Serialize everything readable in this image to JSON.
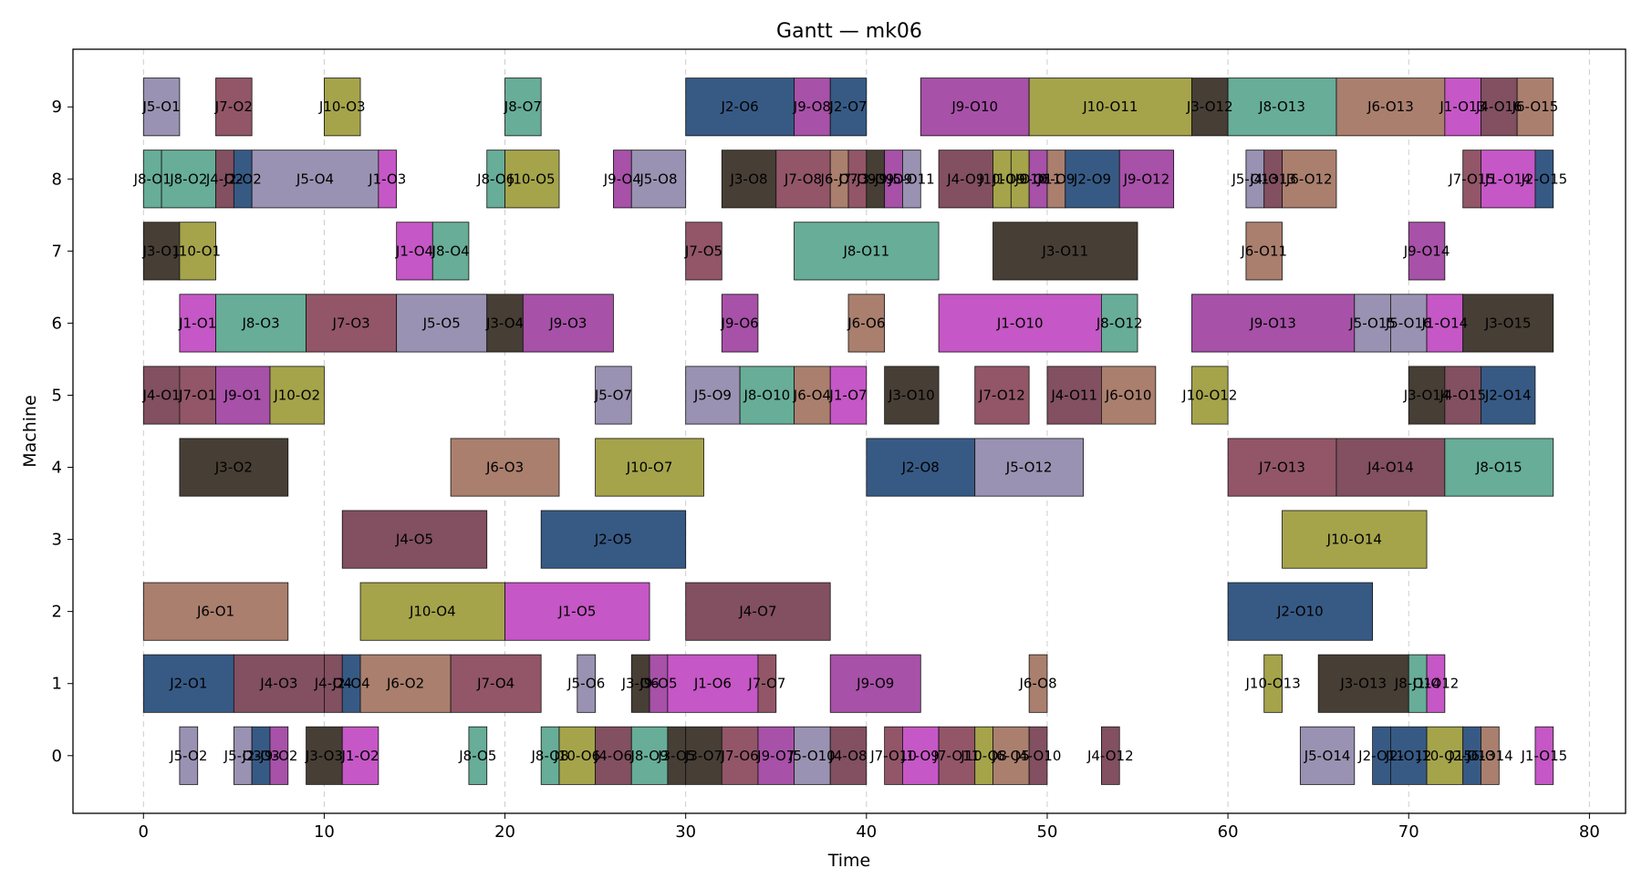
{
  "chart_data": {
    "type": "gantt",
    "title": "Gantt — mk06",
    "xlabel": "Time",
    "ylabel": "Machine",
    "xlim": [
      -3.9,
      82
    ],
    "ylim": [
      -0.8,
      9.8
    ],
    "xticks": [
      0,
      10,
      20,
      30,
      40,
      50,
      60,
      70,
      80
    ],
    "yticks": [
      0,
      1,
      2,
      3,
      4,
      5,
      6,
      7,
      8,
      9
    ],
    "grid": "vertical-dashed",
    "job_colors": {
      "J1": "#c657c6",
      "J2": "#375a85",
      "J3": "#473e35",
      "J4": "#825060",
      "J5": "#9a92b2",
      "J6": "#aa7f6e",
      "J7": "#925668",
      "J8": "#67ad98",
      "J9": "#a751a8",
      "J10": "#a5a44b"
    },
    "tasks": [
      {
        "m": 9,
        "s": 0,
        "e": 2,
        "label": "J5-O1"
      },
      {
        "m": 9,
        "s": 4,
        "e": 6,
        "label": "J7-O2"
      },
      {
        "m": 9,
        "s": 10,
        "e": 12,
        "label": "J10-O3"
      },
      {
        "m": 9,
        "s": 20,
        "e": 22,
        "label": "J8-O7"
      },
      {
        "m": 9,
        "s": 30,
        "e": 36,
        "label": "J2-O6"
      },
      {
        "m": 9,
        "s": 36,
        "e": 38,
        "label": "J9-O8"
      },
      {
        "m": 9,
        "s": 38,
        "e": 40,
        "label": "J2-O7"
      },
      {
        "m": 9,
        "s": 43,
        "e": 49,
        "label": "J9-O10"
      },
      {
        "m": 9,
        "s": 49,
        "e": 58,
        "label": "J10-O11"
      },
      {
        "m": 9,
        "s": 58,
        "e": 60,
        "label": "J3-O12"
      },
      {
        "m": 9,
        "s": 60,
        "e": 66,
        "label": "J8-O13"
      },
      {
        "m": 9,
        "s": 66,
        "e": 72,
        "label": "J6-O13"
      },
      {
        "m": 9,
        "s": 72,
        "e": 74,
        "label": "J1-O13"
      },
      {
        "m": 9,
        "s": 74,
        "e": 76,
        "label": "J4-O16"
      },
      {
        "m": 9,
        "s": 76,
        "e": 78,
        "label": "J6-O15"
      },
      {
        "m": 8,
        "s": 0,
        "e": 1,
        "label": "J8-O1"
      },
      {
        "m": 8,
        "s": 1,
        "e": 4,
        "label": "J8-O2"
      },
      {
        "m": 8,
        "s": 4,
        "e": 5,
        "label": "J4-O2"
      },
      {
        "m": 8,
        "s": 5,
        "e": 6,
        "label": "J2-O2"
      },
      {
        "m": 8,
        "s": 6,
        "e": 13,
        "label": "J5-O4"
      },
      {
        "m": 8,
        "s": 13,
        "e": 14,
        "label": "J1-O3"
      },
      {
        "m": 8,
        "s": 19,
        "e": 20,
        "label": "J8-O6"
      },
      {
        "m": 8,
        "s": 20,
        "e": 23,
        "label": "J10-O5"
      },
      {
        "m": 8,
        "s": 26,
        "e": 27,
        "label": "J9-O4"
      },
      {
        "m": 8,
        "s": 27,
        "e": 30,
        "label": "J5-O8"
      },
      {
        "m": 8,
        "s": 32,
        "e": 35,
        "label": "J3-O8"
      },
      {
        "m": 8,
        "s": 35,
        "e": 38,
        "label": "J7-O8"
      },
      {
        "m": 8,
        "s": 38,
        "e": 39,
        "label": "J6-O7"
      },
      {
        "m": 8,
        "s": 39,
        "e": 40,
        "label": "J7-O9"
      },
      {
        "m": 8,
        "s": 40,
        "e": 41,
        "label": "J3-O9"
      },
      {
        "m": 8,
        "s": 41,
        "e": 42,
        "label": "J9-O9"
      },
      {
        "m": 8,
        "s": 42,
        "e": 43,
        "label": "J5-O11"
      },
      {
        "m": 8,
        "s": 44,
        "e": 47,
        "label": "J4-O9"
      },
      {
        "m": 8,
        "s": 47,
        "e": 48,
        "label": "J10-O9"
      },
      {
        "m": 8,
        "s": 48,
        "e": 49,
        "label": "J10-O10"
      },
      {
        "m": 8,
        "s": 49,
        "e": 50,
        "label": "J9-O11"
      },
      {
        "m": 8,
        "s": 50,
        "e": 51,
        "label": "J6-O9"
      },
      {
        "m": 8,
        "s": 51,
        "e": 54,
        "label": "J2-O9"
      },
      {
        "m": 8,
        "s": 54,
        "e": 57,
        "label": "J9-O12"
      },
      {
        "m": 8,
        "s": 61,
        "e": 62,
        "label": "J5-O13"
      },
      {
        "m": 8,
        "s": 62,
        "e": 63,
        "label": "J4-O13"
      },
      {
        "m": 8,
        "s": 63,
        "e": 66,
        "label": "J6-O12"
      },
      {
        "m": 8,
        "s": 73,
        "e": 74,
        "label": "J7-O15"
      },
      {
        "m": 8,
        "s": 74,
        "e": 77,
        "label": "J1-O14"
      },
      {
        "m": 8,
        "s": 77,
        "e": 78,
        "label": "J2-O15"
      },
      {
        "m": 7,
        "s": 0,
        "e": 2,
        "label": "J3-O1"
      },
      {
        "m": 7,
        "s": 2,
        "e": 4,
        "label": "J10-O1"
      },
      {
        "m": 7,
        "s": 14,
        "e": 16,
        "label": "J1-O4"
      },
      {
        "m": 7,
        "s": 16,
        "e": 18,
        "label": "J8-O4"
      },
      {
        "m": 7,
        "s": 30,
        "e": 32,
        "label": "J7-O5"
      },
      {
        "m": 7,
        "s": 36,
        "e": 44,
        "label": "J8-O11"
      },
      {
        "m": 7,
        "s": 47,
        "e": 55,
        "label": "J3-O11"
      },
      {
        "m": 7,
        "s": 61,
        "e": 63,
        "label": "J6-O11"
      },
      {
        "m": 7,
        "s": 70,
        "e": 72,
        "label": "J9-O14"
      },
      {
        "m": 6,
        "s": 2,
        "e": 4,
        "label": "J1-O1"
      },
      {
        "m": 6,
        "s": 4,
        "e": 9,
        "label": "J8-O3"
      },
      {
        "m": 6,
        "s": 9,
        "e": 14,
        "label": "J7-O3"
      },
      {
        "m": 6,
        "s": 14,
        "e": 19,
        "label": "J5-O5"
      },
      {
        "m": 6,
        "s": 19,
        "e": 21,
        "label": "J3-O4"
      },
      {
        "m": 6,
        "s": 21,
        "e": 26,
        "label": "J9-O3"
      },
      {
        "m": 6,
        "s": 32,
        "e": 34,
        "label": "J9-O6"
      },
      {
        "m": 6,
        "s": 39,
        "e": 41,
        "label": "J6-O6"
      },
      {
        "m": 6,
        "s": 44,
        "e": 53,
        "label": "J1-O10"
      },
      {
        "m": 6,
        "s": 53,
        "e": 55,
        "label": "J8-O12"
      },
      {
        "m": 6,
        "s": 58,
        "e": 67,
        "label": "J9-O13"
      },
      {
        "m": 6,
        "s": 67,
        "e": 69,
        "label": "J5-O15"
      },
      {
        "m": 6,
        "s": 69,
        "e": 71,
        "label": "J5-O16"
      },
      {
        "m": 6,
        "s": 71,
        "e": 73,
        "label": "J1-O14"
      },
      {
        "m": 6,
        "s": 73,
        "e": 78,
        "label": "J3-O15"
      },
      {
        "m": 5,
        "s": 0,
        "e": 2,
        "label": "J4-O1"
      },
      {
        "m": 5,
        "s": 2,
        "e": 4,
        "label": "J7-O1"
      },
      {
        "m": 5,
        "s": 4,
        "e": 7,
        "label": "J9-O1"
      },
      {
        "m": 5,
        "s": 7,
        "e": 10,
        "label": "J10-O2"
      },
      {
        "m": 5,
        "s": 25,
        "e": 27,
        "label": "J5-O7"
      },
      {
        "m": 5,
        "s": 30,
        "e": 33,
        "label": "J5-O9"
      },
      {
        "m": 5,
        "s": 33,
        "e": 36,
        "label": "J8-O10"
      },
      {
        "m": 5,
        "s": 36,
        "e": 38,
        "label": "J6-O4"
      },
      {
        "m": 5,
        "s": 38,
        "e": 40,
        "label": "J1-O7"
      },
      {
        "m": 5,
        "s": 41,
        "e": 44,
        "label": "J3-O10"
      },
      {
        "m": 5,
        "s": 46,
        "e": 49,
        "label": "J7-O12"
      },
      {
        "m": 5,
        "s": 50,
        "e": 53,
        "label": "J4-O11"
      },
      {
        "m": 5,
        "s": 53,
        "e": 56,
        "label": "J6-O10"
      },
      {
        "m": 5,
        "s": 58,
        "e": 60,
        "label": "J10-O12"
      },
      {
        "m": 5,
        "s": 70,
        "e": 72,
        "label": "J3-O14"
      },
      {
        "m": 5,
        "s": 72,
        "e": 74,
        "label": "J4-O15"
      },
      {
        "m": 5,
        "s": 74,
        "e": 77,
        "label": "J2-O14"
      },
      {
        "m": 4,
        "s": 2,
        "e": 8,
        "label": "J3-O2"
      },
      {
        "m": 4,
        "s": 17,
        "e": 23,
        "label": "J6-O3"
      },
      {
        "m": 4,
        "s": 25,
        "e": 31,
        "label": "J10-O7"
      },
      {
        "m": 4,
        "s": 40,
        "e": 46,
        "label": "J2-O8"
      },
      {
        "m": 4,
        "s": 46,
        "e": 52,
        "label": "J5-O12"
      },
      {
        "m": 4,
        "s": 60,
        "e": 66,
        "label": "J7-O13"
      },
      {
        "m": 4,
        "s": 66,
        "e": 72,
        "label": "J4-O14"
      },
      {
        "m": 4,
        "s": 72,
        "e": 78,
        "label": "J8-O15"
      },
      {
        "m": 3,
        "s": 11,
        "e": 19,
        "label": "J4-O5"
      },
      {
        "m": 3,
        "s": 22,
        "e": 30,
        "label": "J2-O5"
      },
      {
        "m": 3,
        "s": 63,
        "e": 71,
        "label": "J10-O14"
      },
      {
        "m": 2,
        "s": 0,
        "e": 8,
        "label": "J6-O1"
      },
      {
        "m": 2,
        "s": 12,
        "e": 20,
        "label": "J10-O4"
      },
      {
        "m": 2,
        "s": 20,
        "e": 28,
        "label": "J1-O5"
      },
      {
        "m": 2,
        "s": 30,
        "e": 38,
        "label": "J4-O7"
      },
      {
        "m": 2,
        "s": 60,
        "e": 68,
        "label": "J2-O10"
      },
      {
        "m": 1,
        "s": 0,
        "e": 5,
        "label": "J2-O1"
      },
      {
        "m": 1,
        "s": 5,
        "e": 10,
        "label": "J4-O3"
      },
      {
        "m": 1,
        "s": 10,
        "e": 11,
        "label": "J4-O4"
      },
      {
        "m": 1,
        "s": 11,
        "e": 12,
        "label": "J2-O4"
      },
      {
        "m": 1,
        "s": 12,
        "e": 17,
        "label": "J6-O2"
      },
      {
        "m": 1,
        "s": 17,
        "e": 22,
        "label": "J7-O4"
      },
      {
        "m": 1,
        "s": 24,
        "e": 25,
        "label": "J5-O6"
      },
      {
        "m": 1,
        "s": 27,
        "e": 28,
        "label": "J3-O6"
      },
      {
        "m": 1,
        "s": 28,
        "e": 29,
        "label": "J9-O5"
      },
      {
        "m": 1,
        "s": 29,
        "e": 34,
        "label": "J1-O6"
      },
      {
        "m": 1,
        "s": 34,
        "e": 35,
        "label": "J7-O7"
      },
      {
        "m": 1,
        "s": 38,
        "e": 43,
        "label": "J9-O9"
      },
      {
        "m": 1,
        "s": 49,
        "e": 50,
        "label": "J6-O8"
      },
      {
        "m": 1,
        "s": 62,
        "e": 63,
        "label": "J10-O13"
      },
      {
        "m": 1,
        "s": 65,
        "e": 70,
        "label": "J3-O13"
      },
      {
        "m": 1,
        "s": 70,
        "e": 71,
        "label": "J8-O14"
      },
      {
        "m": 1,
        "s": 71,
        "e": 72,
        "label": "J1-O12"
      },
      {
        "m": 0,
        "s": 2,
        "e": 3,
        "label": "J5-O2"
      },
      {
        "m": 0,
        "s": 5,
        "e": 6,
        "label": "J5-O3"
      },
      {
        "m": 0,
        "s": 6,
        "e": 7,
        "label": "J2-O3"
      },
      {
        "m": 0,
        "s": 7,
        "e": 8,
        "label": "J9-O2"
      },
      {
        "m": 0,
        "s": 9,
        "e": 11,
        "label": "J3-O3"
      },
      {
        "m": 0,
        "s": 11,
        "e": 13,
        "label": "J1-O2"
      },
      {
        "m": 0,
        "s": 18,
        "e": 19,
        "label": "J8-O5"
      },
      {
        "m": 0,
        "s": 22,
        "e": 23,
        "label": "J8-O8"
      },
      {
        "m": 0,
        "s": 23,
        "e": 25,
        "label": "J10-O6"
      },
      {
        "m": 0,
        "s": 25,
        "e": 27,
        "label": "J4-O6"
      },
      {
        "m": 0,
        "s": 27,
        "e": 29,
        "label": "J8-O9"
      },
      {
        "m": 0,
        "s": 29,
        "e": 30,
        "label": "J3-O5"
      },
      {
        "m": 0,
        "s": 30,
        "e": 32,
        "label": "J3-O7"
      },
      {
        "m": 0,
        "s": 32,
        "e": 34,
        "label": "J7-O6"
      },
      {
        "m": 0,
        "s": 34,
        "e": 36,
        "label": "J9-O7"
      },
      {
        "m": 0,
        "s": 36,
        "e": 38,
        "label": "J5-O10"
      },
      {
        "m": 0,
        "s": 38,
        "e": 40,
        "label": "J4-O8"
      },
      {
        "m": 0,
        "s": 41,
        "e": 42,
        "label": "J7-O10"
      },
      {
        "m": 0,
        "s": 42,
        "e": 44,
        "label": "J1-O9"
      },
      {
        "m": 0,
        "s": 44,
        "e": 46,
        "label": "J7-O11"
      },
      {
        "m": 0,
        "s": 46,
        "e": 47,
        "label": "J10-O8"
      },
      {
        "m": 0,
        "s": 47,
        "e": 49,
        "label": "J6-O5"
      },
      {
        "m": 0,
        "s": 49,
        "e": 50,
        "label": "J4-O10"
      },
      {
        "m": 0,
        "s": 53,
        "e": 54,
        "label": "J4-O12"
      },
      {
        "m": 0,
        "s": 64,
        "e": 67,
        "label": "J5-O14"
      },
      {
        "m": 0,
        "s": 68,
        "e": 69,
        "label": "J2-O11"
      },
      {
        "m": 0,
        "s": 69,
        "e": 71,
        "label": "J2-O12"
      },
      {
        "m": 0,
        "s": 71,
        "e": 73,
        "label": "J10-O15"
      },
      {
        "m": 0,
        "s": 73,
        "e": 74,
        "label": "J2-O13"
      },
      {
        "m": 0,
        "s": 74,
        "e": 75,
        "label": "J6-O14"
      },
      {
        "m": 0,
        "s": 77,
        "e": 78,
        "label": "J1-O15"
      }
    ]
  }
}
